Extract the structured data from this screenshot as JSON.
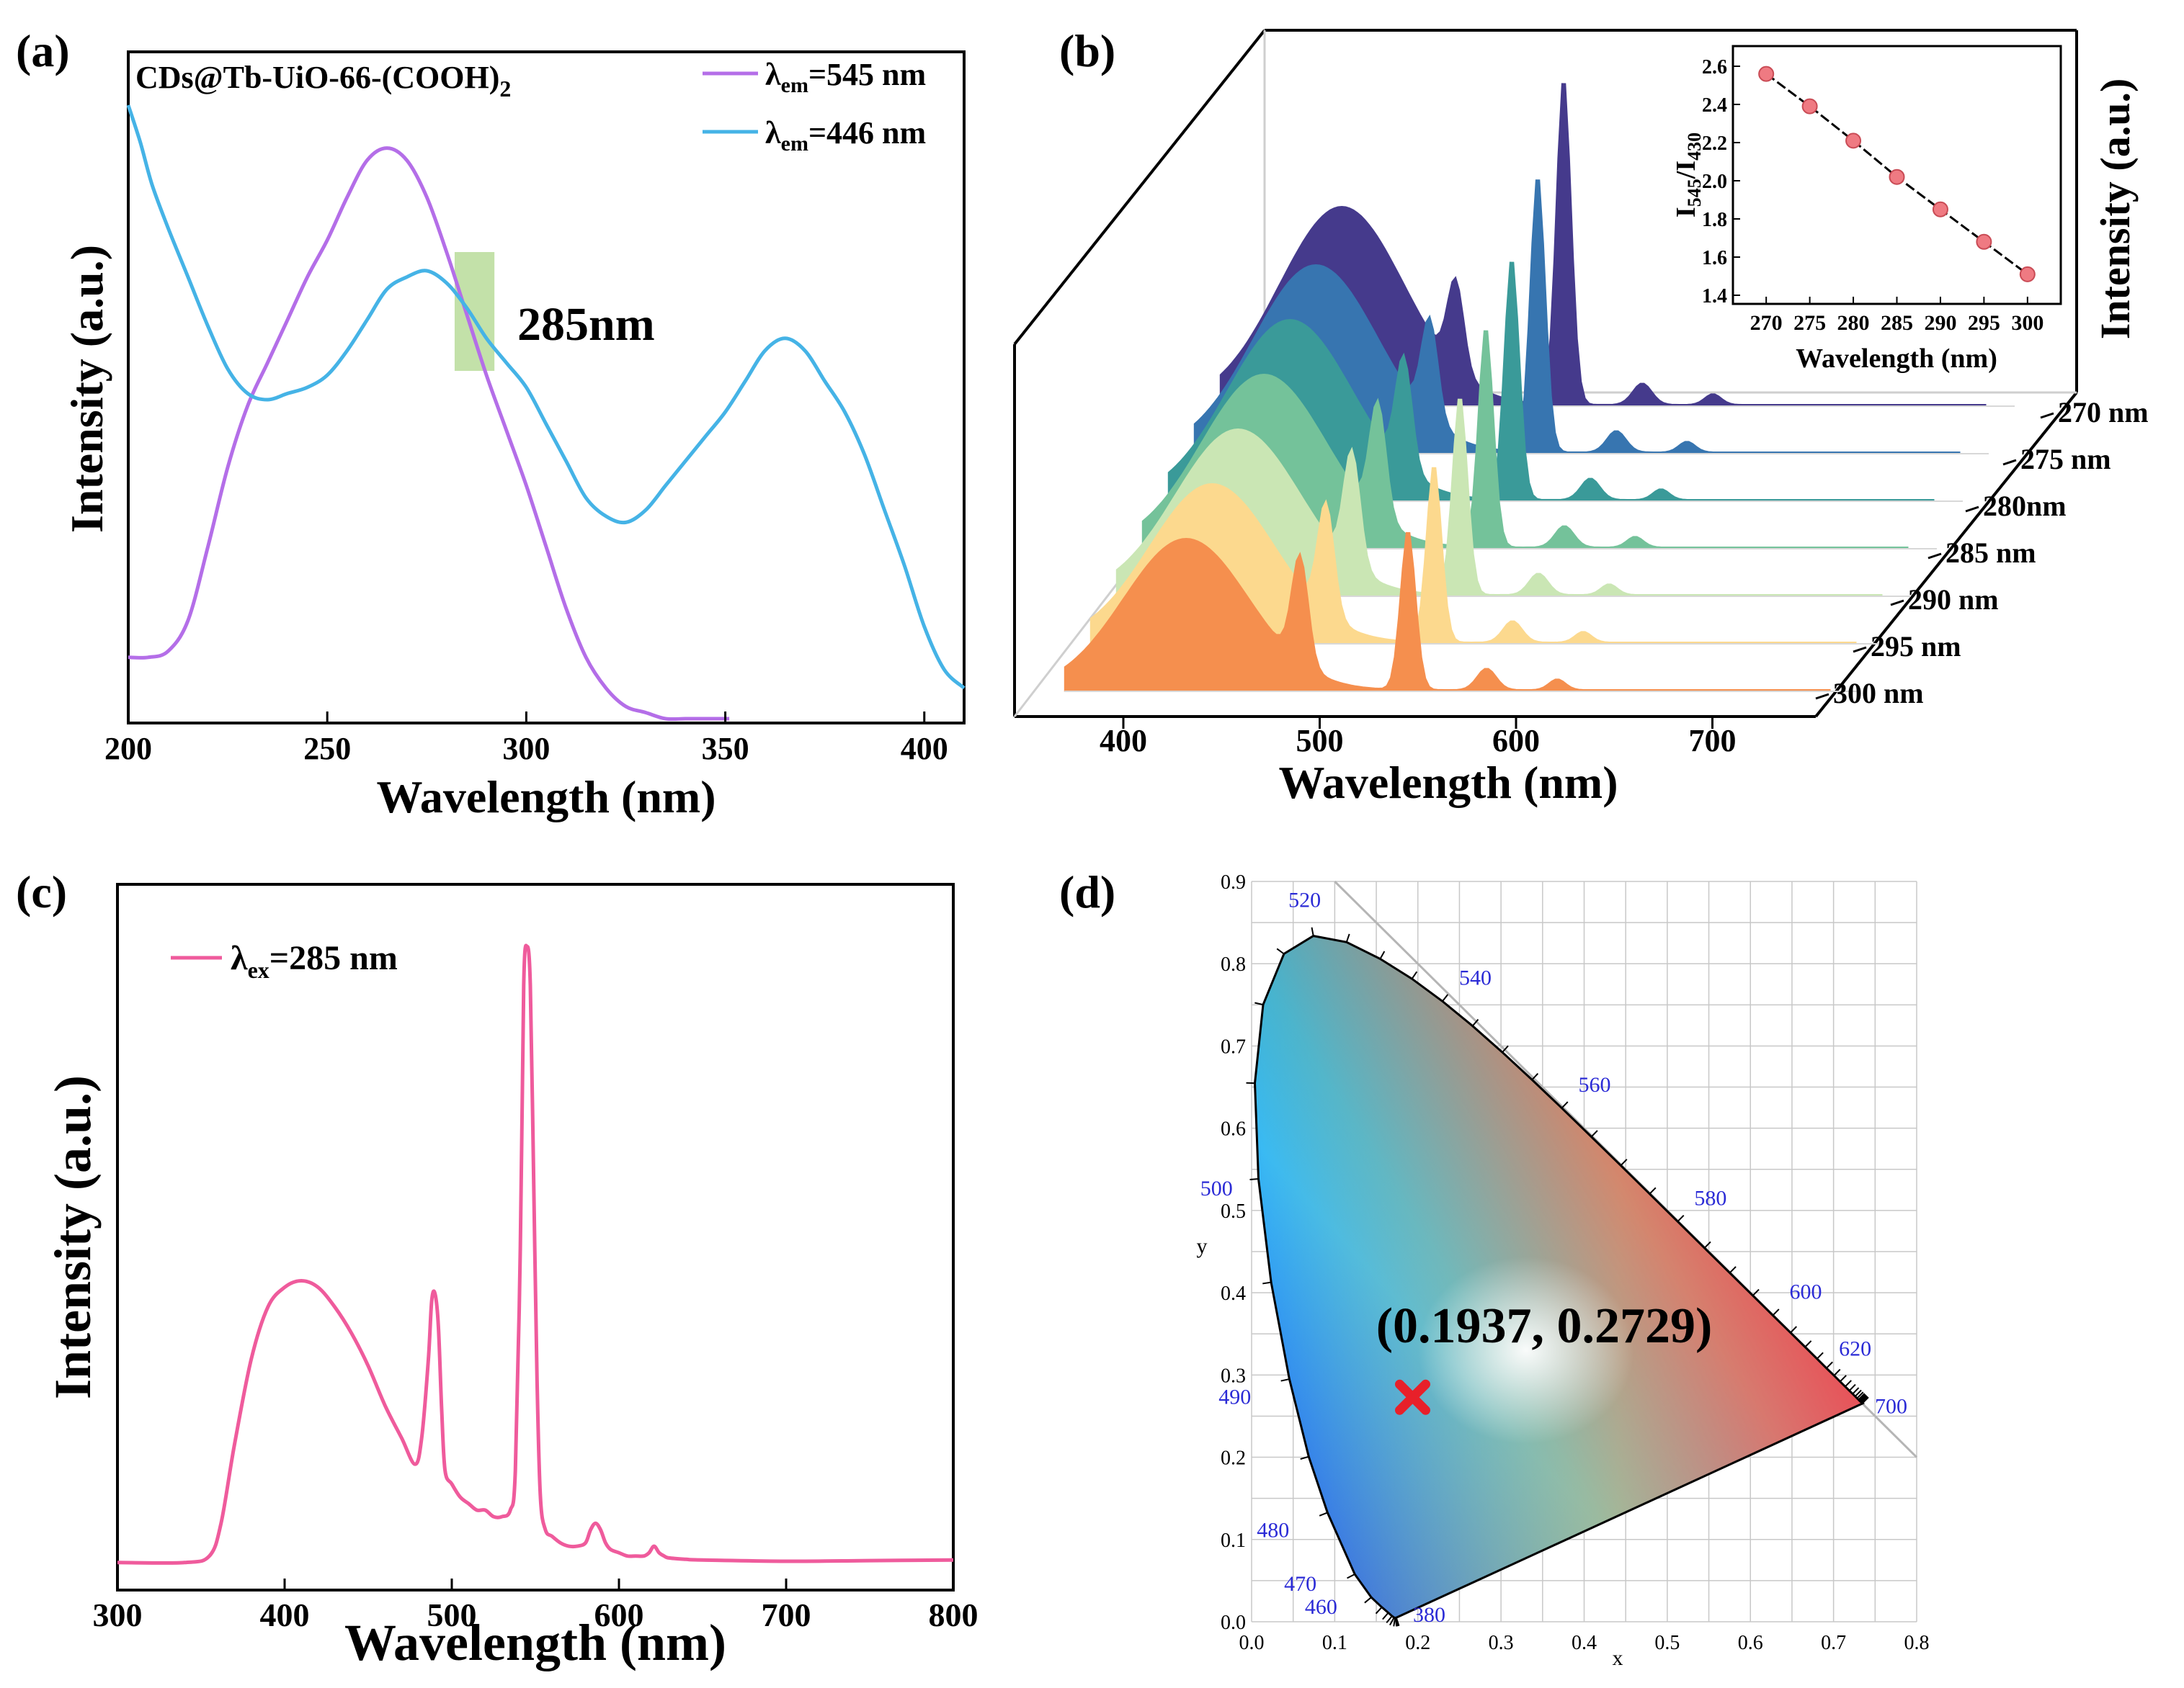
{
  "panel_labels": [
    "(a)",
    "(b)",
    "(c)",
    "(d)"
  ],
  "colors": {
    "purple": "#b46ee8",
    "blue": "#45b3e6",
    "pink": "#ef5b9c",
    "highlight": "#b9dc9a",
    "marker": "#e8202a",
    "ticklabel_blue": "#2b2bd6"
  },
  "chart_data": [
    {
      "id": "a",
      "type": "line",
      "title": "CDs@Tb-UiO-66-(COOH)",
      "title_sub": "2",
      "xlabel": "Wavelength (nm)",
      "ylabel": "Intensity (a.u.)",
      "xlim": [
        200,
        410
      ],
      "ylim": [
        0,
        1.0
      ],
      "xticks": [
        200,
        250,
        300,
        350,
        400
      ],
      "highlight": {
        "x_from": 282,
        "x_to": 292,
        "label": "285nm"
      },
      "legend_position": "top-right",
      "series": [
        {
          "name": "em_545",
          "legend_main": "λ",
          "legend_sub": "em",
          "legend_rest": "=545 nm",
          "color": "#b46ee8",
          "x": [
            200,
            205,
            210,
            215,
            220,
            225,
            230,
            235,
            240,
            245,
            250,
            255,
            260,
            265,
            270,
            275,
            280,
            285,
            290,
            295,
            300,
            305,
            310,
            315,
            320,
            325,
            330,
            335,
            340,
            345,
            350,
            351
          ],
          "y": [
            0.1,
            0.1,
            0.11,
            0.16,
            0.28,
            0.41,
            0.51,
            0.58,
            0.65,
            0.72,
            0.78,
            0.85,
            0.91,
            0.93,
            0.91,
            0.85,
            0.76,
            0.66,
            0.56,
            0.47,
            0.38,
            0.28,
            0.18,
            0.1,
            0.05,
            0.02,
            0.01,
            0.0,
            0.0,
            0.0,
            0.0,
            0.0
          ]
        },
        {
          "name": "em_446",
          "legend_main": "λ",
          "legend_sub": "em",
          "legend_rest": "=446 nm",
          "color": "#45b3e6",
          "x": [
            200,
            203,
            206,
            210,
            215,
            220,
            225,
            230,
            235,
            240,
            245,
            250,
            255,
            260,
            265,
            270,
            275,
            280,
            285,
            290,
            295,
            300,
            305,
            310,
            315,
            320,
            325,
            330,
            335,
            340,
            345,
            350,
            355,
            360,
            365,
            370,
            375,
            380,
            385,
            390,
            395,
            400,
            405,
            410
          ],
          "y": [
            1.0,
            0.94,
            0.87,
            0.8,
            0.72,
            0.64,
            0.57,
            0.53,
            0.52,
            0.53,
            0.54,
            0.56,
            0.6,
            0.65,
            0.7,
            0.72,
            0.73,
            0.71,
            0.67,
            0.62,
            0.58,
            0.54,
            0.48,
            0.42,
            0.36,
            0.33,
            0.32,
            0.34,
            0.38,
            0.42,
            0.46,
            0.5,
            0.55,
            0.6,
            0.62,
            0.6,
            0.55,
            0.5,
            0.43,
            0.34,
            0.25,
            0.15,
            0.08,
            0.05
          ]
        }
      ]
    },
    {
      "id": "b",
      "type": "line",
      "subtype": "3d-waterfall",
      "xlabel": "Wavelength (nm)",
      "zlabel": "Intensity (a.u.)",
      "xlim": [
        360,
        760
      ],
      "xticks": [
        400,
        500,
        600,
        700
      ],
      "series": [
        {
          "name": "270 nm",
          "color": "#453a8c",
          "broad_peak": 0.55,
          "p490": 0.25,
          "p545": 0.92
        },
        {
          "name": "275 nm",
          "color": "#3775b0",
          "broad_peak": 0.52,
          "p490": 0.28,
          "p545": 0.78
        },
        {
          "name": "280nm",
          "color": "#3a9a99",
          "broad_peak": 0.5,
          "p490": 0.31,
          "p545": 0.68
        },
        {
          "name": "285 nm",
          "color": "#74c29a",
          "broad_peak": 0.48,
          "p490": 0.32,
          "p545": 0.62
        },
        {
          "name": "290 nm",
          "color": "#cae6b4",
          "broad_peak": 0.46,
          "p490": 0.32,
          "p545": 0.56
        },
        {
          "name": "295 nm",
          "color": "#fcd98e",
          "broad_peak": 0.44,
          "p490": 0.31,
          "p545": 0.5
        },
        {
          "name": "300 nm",
          "color": "#f58f4e",
          "broad_peak": 0.42,
          "p490": 0.3,
          "p545": 0.45
        }
      ],
      "inset": {
        "type": "scatter",
        "xlabel": "Wavelength (nm)",
        "ylabel_main": "I",
        "ylabel_sub1": "545",
        "ylabel_mid": "/I",
        "ylabel_sub2": "430",
        "xlim": [
          268,
          302
        ],
        "ylim": [
          1.4,
          2.6
        ],
        "xticks": [
          270,
          275,
          280,
          285,
          290,
          295,
          300
        ],
        "yticks": [
          "1.4",
          "1.6",
          "1.8",
          "2.0",
          "2.2",
          "2.4",
          "2.6"
        ],
        "x": [
          270,
          275,
          280,
          285,
          290,
          295,
          300
        ],
        "y": [
          2.56,
          2.39,
          2.21,
          2.02,
          1.85,
          1.68,
          1.51
        ],
        "marker_color": "#ef7a82"
      }
    },
    {
      "id": "c",
      "type": "line",
      "xlabel": "Wavelength (nm)",
      "ylabel": "Intensity (a.u.)",
      "xlim": [
        300,
        800
      ],
      "ylim": [
        0,
        1.0
      ],
      "xticks": [
        300,
        400,
        500,
        600,
        700,
        800
      ],
      "legend_position": "top-left",
      "series": [
        {
          "name": "ex_285",
          "legend_main": "λ",
          "legend_sub": "ex",
          "legend_rest": "=285 nm",
          "color": "#ef5b9c",
          "x": [
            300,
            340,
            355,
            362,
            370,
            380,
            390,
            400,
            410,
            420,
            430,
            440,
            450,
            460,
            470,
            478,
            482,
            486,
            488,
            490,
            492,
            494,
            496,
            500,
            505,
            510,
            515,
            520,
            525,
            530,
            535,
            538,
            541,
            543,
            545,
            547,
            549,
            551,
            553,
            556,
            560,
            565,
            570,
            575,
            580,
            583,
            586,
            589,
            592,
            595,
            600,
            605,
            610,
            615,
            618,
            621,
            624,
            627,
            630,
            640,
            650,
            700,
            750,
            800
          ],
          "y": [
            0.02,
            0.02,
            0.03,
            0.08,
            0.2,
            0.33,
            0.41,
            0.44,
            0.45,
            0.44,
            0.41,
            0.37,
            0.32,
            0.26,
            0.21,
            0.17,
            0.21,
            0.33,
            0.42,
            0.43,
            0.38,
            0.25,
            0.16,
            0.14,
            0.12,
            0.11,
            0.1,
            0.1,
            0.09,
            0.09,
            0.1,
            0.16,
            0.5,
            0.9,
            0.96,
            0.9,
            0.6,
            0.3,
            0.12,
            0.07,
            0.06,
            0.05,
            0.045,
            0.045,
            0.05,
            0.07,
            0.08,
            0.07,
            0.05,
            0.04,
            0.035,
            0.03,
            0.03,
            0.03,
            0.035,
            0.045,
            0.035,
            0.03,
            0.027,
            0.025,
            0.024,
            0.022,
            0.023,
            0.024
          ]
        }
      ]
    },
    {
      "id": "d",
      "type": "scatter",
      "subtype": "cie-1931",
      "xlabel": "x",
      "ylabel": "y",
      "xlim": [
        0.0,
        0.8
      ],
      "ylim": [
        0.0,
        0.9
      ],
      "xticks": [
        "0.0",
        "0.1",
        "0.2",
        "0.3",
        "0.4",
        "0.5",
        "0.6",
        "0.7",
        "0.8"
      ],
      "yticks": [
        "0.0",
        "0.1",
        "0.2",
        "0.3",
        "0.4",
        "0.5",
        "0.6",
        "0.7",
        "0.8",
        "0.9"
      ],
      "locus": {
        "x": [
          0.1741,
          0.174,
          0.1738,
          0.1736,
          0.1733,
          0.1726,
          0.1714,
          0.1689,
          0.1644,
          0.1566,
          0.144,
          0.1241,
          0.0913,
          0.0687,
          0.0454,
          0.0235,
          0.0082,
          0.0039,
          0.0139,
          0.0389,
          0.0743,
          0.1142,
          0.1547,
          0.1929,
          0.2296,
          0.2658,
          0.3016,
          0.3373,
          0.3731,
          0.4087,
          0.4441,
          0.4788,
          0.5125,
          0.5448,
          0.5752,
          0.6029,
          0.627,
          0.6482,
          0.6658,
          0.6801,
          0.6915,
          0.7006,
          0.7079,
          0.714,
          0.719,
          0.723,
          0.726,
          0.7283,
          0.73,
          0.7311,
          0.732,
          0.7327,
          0.7334,
          0.734,
          0.7344,
          0.7346,
          0.7347
        ],
        "y": [
          0.005,
          0.005,
          0.0049,
          0.0049,
          0.0048,
          0.0048,
          0.0051,
          0.0069,
          0.0109,
          0.0177,
          0.0297,
          0.0578,
          0.1327,
          0.2007,
          0.295,
          0.4127,
          0.5384,
          0.6548,
          0.7502,
          0.812,
          0.8338,
          0.8262,
          0.8059,
          0.7816,
          0.7543,
          0.7243,
          0.6923,
          0.6589,
          0.6245,
          0.5896,
          0.5547,
          0.5202,
          0.4866,
          0.4544,
          0.4242,
          0.3965,
          0.3725,
          0.3514,
          0.334,
          0.3197,
          0.3083,
          0.2993,
          0.292,
          0.2859,
          0.2809,
          0.277,
          0.274,
          0.2717,
          0.27,
          0.2689,
          0.268,
          0.2673,
          0.2666,
          0.266,
          0.2656,
          0.2654,
          0.2653
        ]
      },
      "wavelength_labels": [
        {
          "text": "380",
          "x": 0.1741,
          "y": 0.005,
          "dx": 0.02,
          "dy": -0.005
        },
        {
          "text": "460",
          "x": 0.144,
          "y": 0.0297,
          "dx": -0.08,
          "dy": -0.02
        },
        {
          "text": "470",
          "x": 0.1241,
          "y": 0.0578,
          "dx": -0.085,
          "dy": -0.02
        },
        {
          "text": "480",
          "x": 0.0913,
          "y": 0.1327,
          "dx": -0.085,
          "dy": -0.03
        },
        {
          "text": "490",
          "x": 0.0454,
          "y": 0.295,
          "dx": -0.085,
          "dy": -0.03
        },
        {
          "text": "500",
          "x": 0.0082,
          "y": 0.5384,
          "dx": -0.07,
          "dy": -0.02
        },
        {
          "text": "520",
          "x": 0.0743,
          "y": 0.8338,
          "dx": -0.03,
          "dy": 0.035
        },
        {
          "text": "540",
          "x": 0.2296,
          "y": 0.7543,
          "dx": 0.02,
          "dy": 0.02
        },
        {
          "text": "560",
          "x": 0.3731,
          "y": 0.6245,
          "dx": 0.02,
          "dy": 0.02
        },
        {
          "text": "580",
          "x": 0.5125,
          "y": 0.4866,
          "dx": 0.02,
          "dy": 0.02
        },
        {
          "text": "600",
          "x": 0.627,
          "y": 0.3725,
          "dx": 0.02,
          "dy": 0.02
        },
        {
          "text": "620",
          "x": 0.6915,
          "y": 0.3083,
          "dx": 0.015,
          "dy": 0.015
        },
        {
          "text": "700",
          "x": 0.7347,
          "y": 0.2653,
          "dx": 0.015,
          "dy": -0.012
        }
      ],
      "point": {
        "x": 0.1937,
        "y": 0.2729,
        "label": "(0.1937, 0.2729)",
        "color": "#e8202a"
      }
    }
  ]
}
